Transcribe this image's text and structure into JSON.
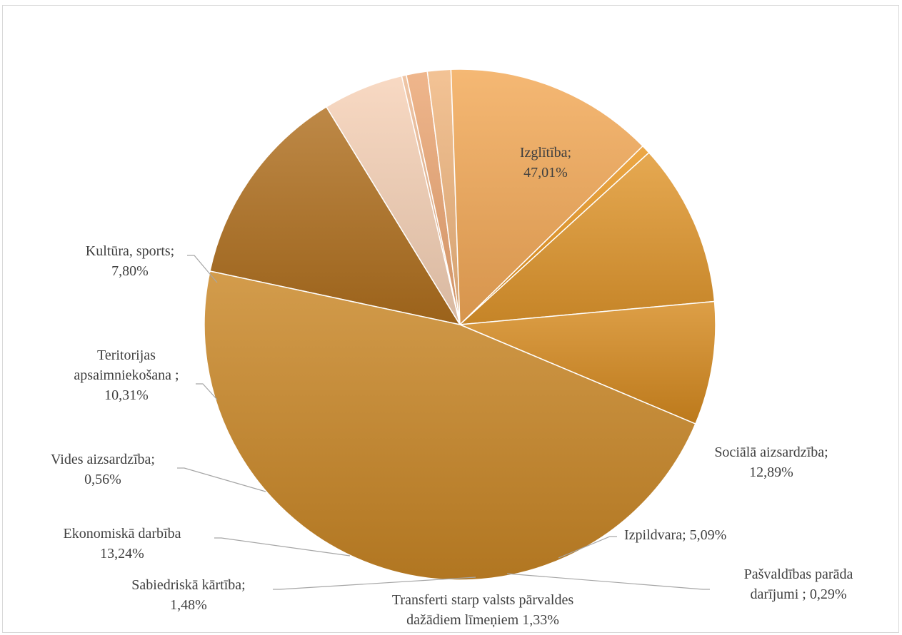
{
  "chart_data": {
    "type": "pie",
    "title": "",
    "start_angle_deg": -77.9,
    "direction": "clockwise",
    "slices": [
      {
        "name": "Sociālā aizsardzība",
        "label_lines": [
          "Sociālā aizsardzība;",
          "12,89%"
        ],
        "value": 12.89,
        "color": "#b06f1e"
      },
      {
        "name": "Izpildvara",
        "label_lines": [
          "Izpildvara; 5,09%"
        ],
        "value": 5.09,
        "color": "#f6d1b6"
      },
      {
        "name": "Pašvaldības parāda darījumi",
        "label_lines": [
          "Pašvaldības parāda",
          "darījumi ; 0,29%"
        ],
        "value": 0.29,
        "color": "#ecb891"
      },
      {
        "name": "Transferti starp valsts pārvaldes dažādiem līmeņiem",
        "label_lines": [
          "Transferti starp valsts pārvaldes",
          "dažādiem līmeņiem 1,33%"
        ],
        "value": 1.33,
        "color": "#eca673"
      },
      {
        "name": "Sabiedriskā kārtība",
        "label_lines": [
          "Sabiedriskā kārtība;",
          "1,48%"
        ],
        "value": 1.48,
        "color": "#f0b67e"
      },
      {
        "name": "Ekonomiskā darbība",
        "label_lines": [
          "Ekonomiskā darbība",
          "13,24%"
        ],
        "value": 13.24,
        "color": "#f3a856"
      },
      {
        "name": "Vides aizsardzība",
        "label_lines": [
          "Vides aizsardzība;",
          "0,56%"
        ],
        "value": 0.56,
        "color": "#e8951f"
      },
      {
        "name": "Teritorijas apsaimniekošana",
        "label_lines": [
          "Teritorijas",
          "apsaimniekošana ;",
          "10,31%"
        ],
        "value": 10.31,
        "color": "#e0962c"
      },
      {
        "name": "Kultūra, sports",
        "label_lines": [
          "Kultūra, sports;",
          "7,80%"
        ],
        "value": 7.8,
        "color": "#d68a1f"
      },
      {
        "name": "Izglītība",
        "label_lines": [
          "Izglītība;",
          "47,01%"
        ],
        "value": 47.01,
        "color": "#c98625"
      }
    ]
  }
}
